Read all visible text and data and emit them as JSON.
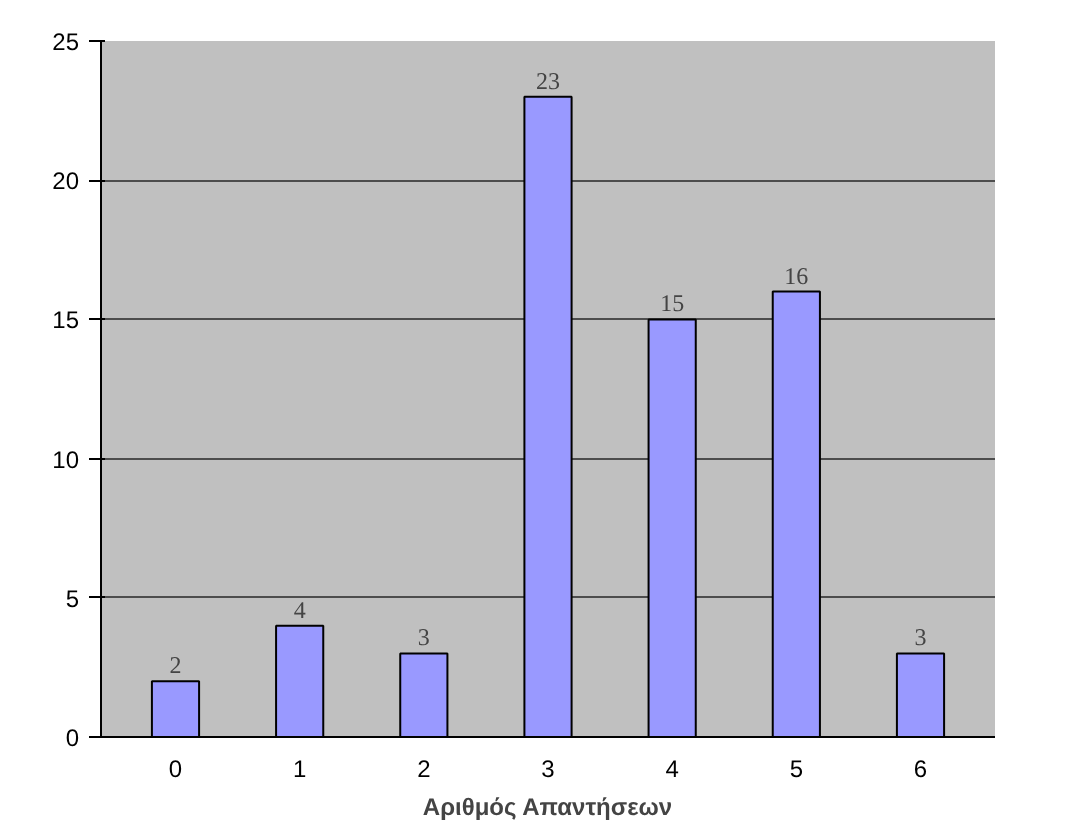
{
  "chart_data": {
    "type": "bar",
    "xlabel": "Αριθμός Απαντήσεων",
    "categories": [
      "0",
      "1",
      "2",
      "3",
      "4",
      "5",
      "6"
    ],
    "values": [
      2,
      4,
      3,
      23,
      15,
      16,
      3
    ],
    "color": "#9999ff",
    "ylim": [
      0,
      25
    ],
    "yticks": [
      0,
      5,
      10,
      15,
      20,
      25
    ],
    "grid": "y",
    "data_labels": true
  }
}
